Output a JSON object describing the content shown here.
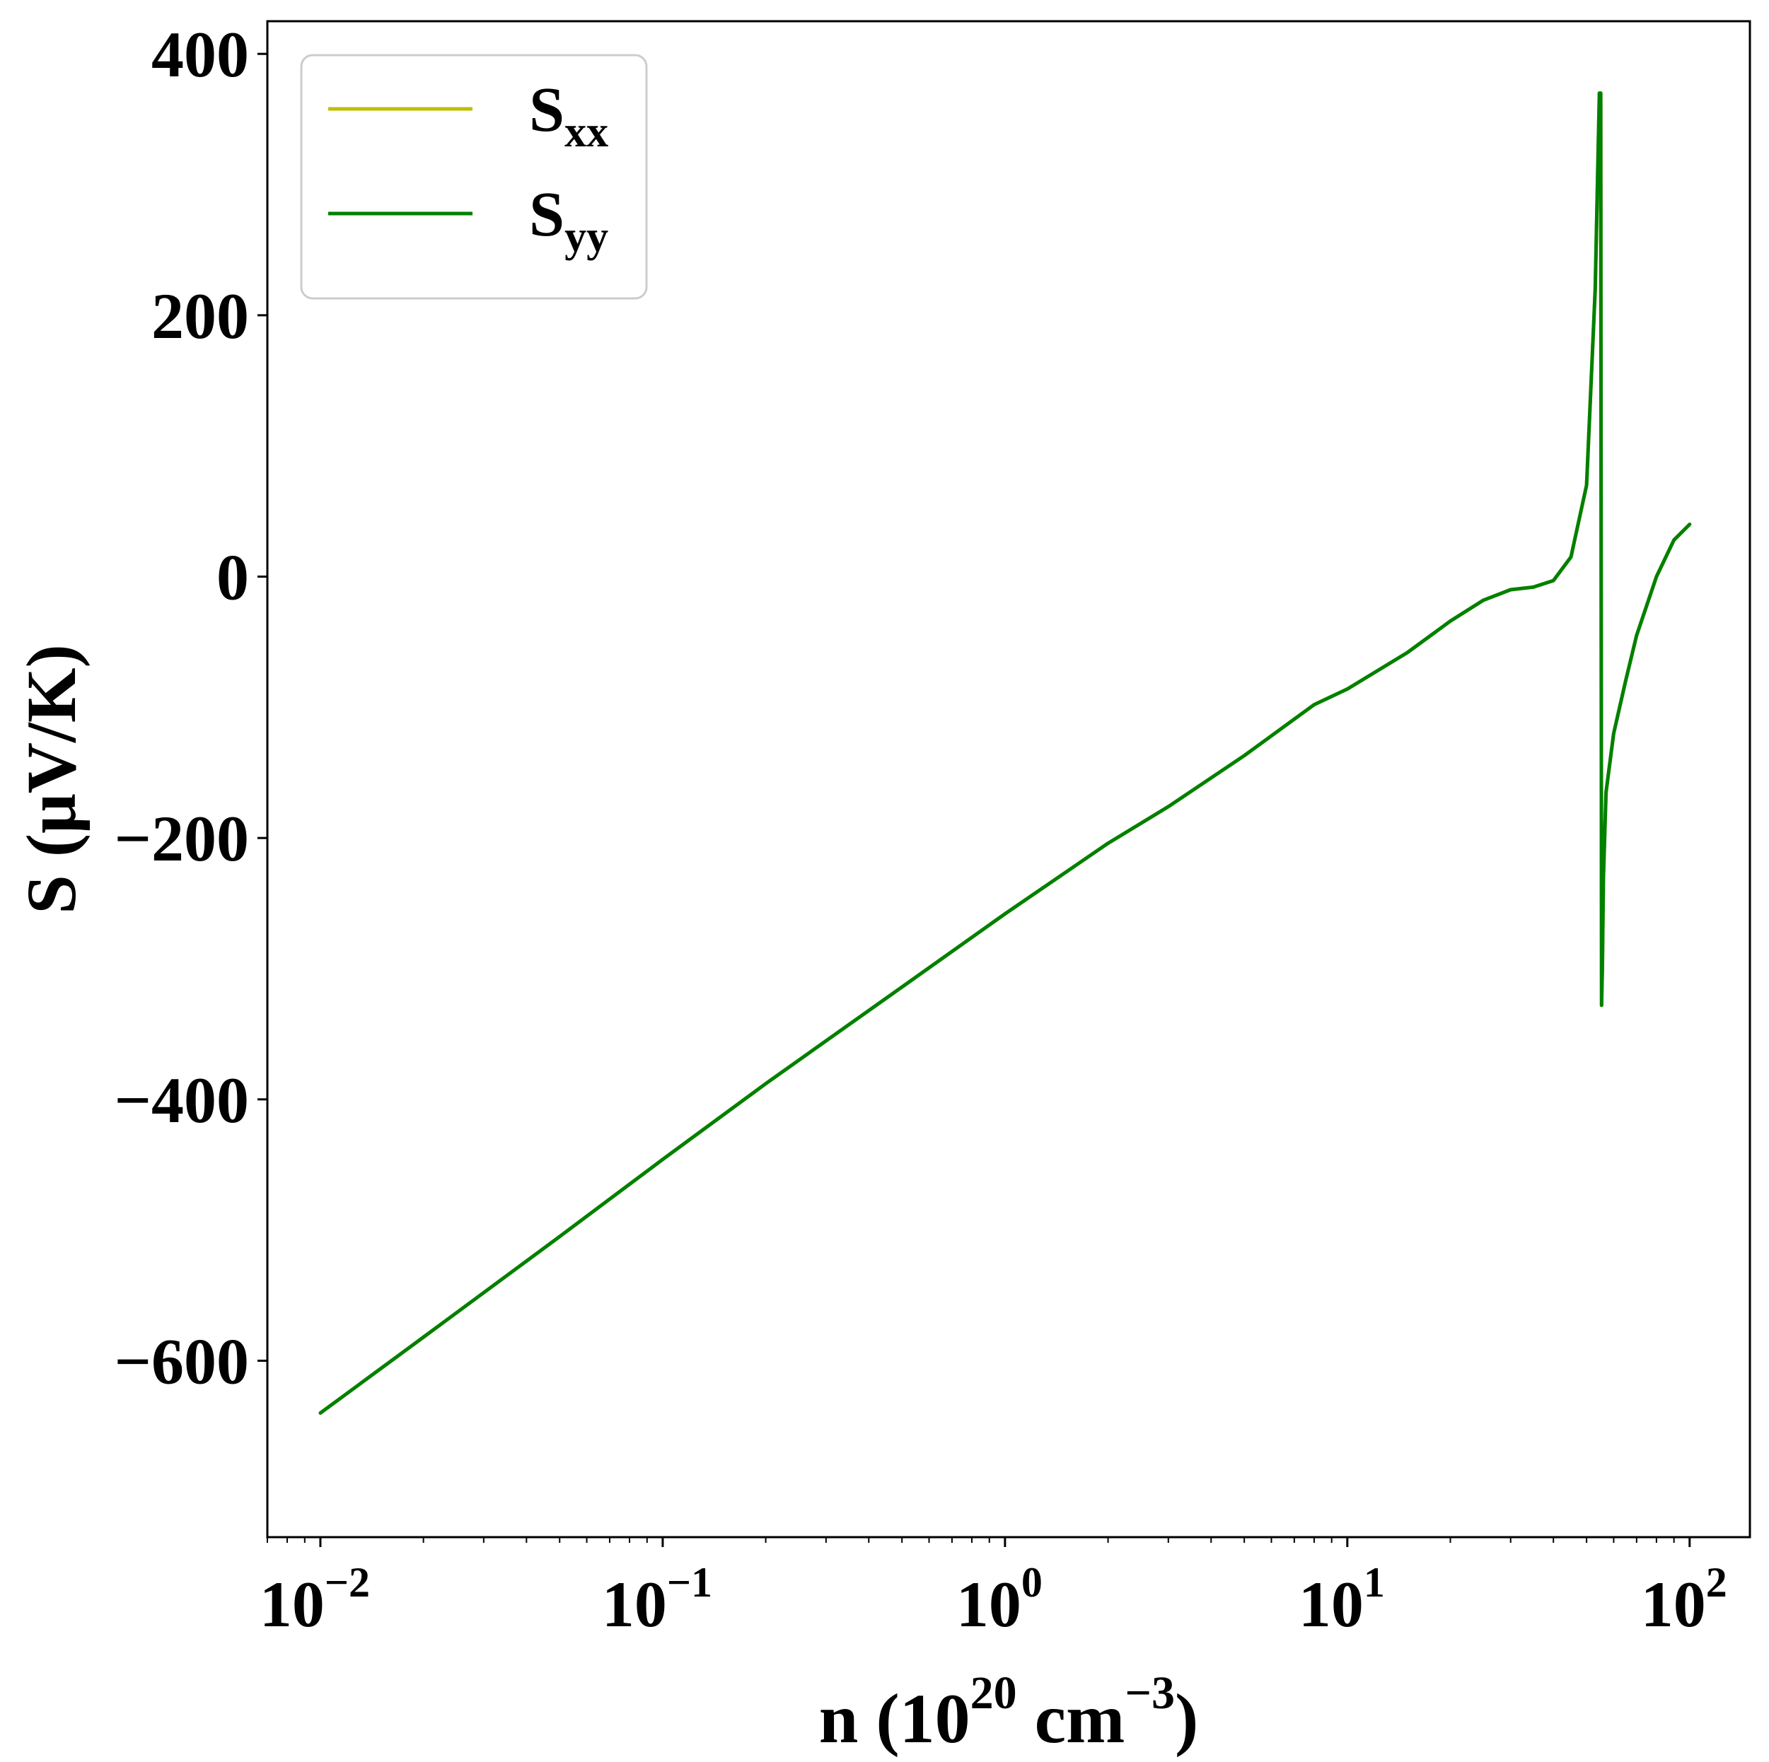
{
  "chart_data": {
    "type": "line",
    "xscale": "log",
    "xlim": [
      0.007,
      150
    ],
    "ylim": [
      -735,
      425
    ],
    "xticks": [
      {
        "value": 0.01,
        "base": "10",
        "exp": "−2"
      },
      {
        "value": 0.1,
        "base": "10",
        "exp": "−1"
      },
      {
        "value": 1,
        "base": "10",
        "exp": "0"
      },
      {
        "value": 10,
        "base": "10",
        "exp": "1"
      },
      {
        "value": 100,
        "base": "10",
        "exp": "2"
      }
    ],
    "yticks": [
      {
        "value": 400,
        "label": "400"
      },
      {
        "value": 200,
        "label": "200"
      },
      {
        "value": 0,
        "label": "0"
      },
      {
        "value": -200,
        "label": "−200"
      },
      {
        "value": -400,
        "label": "−400"
      },
      {
        "value": -600,
        "label": "−600"
      }
    ],
    "xlabel": {
      "prefix": "n (10",
      "sup1": "20",
      "middle": " cm",
      "sup2": "−3",
      "suffix": ")"
    },
    "ylabel": "S (μV/K)",
    "legend_position": "upper-left",
    "series": [
      {
        "name": "S",
        "subscript": "xx",
        "color": "#bfbf00",
        "x": [
          0.01,
          0.02,
          0.05,
          0.1,
          0.2,
          0.5,
          1,
          2,
          3,
          5,
          8,
          10,
          15,
          20,
          25,
          30,
          35,
          40,
          45,
          50,
          53,
          54.5,
          55,
          55.3,
          55.6,
          56,
          57,
          60,
          65,
          70,
          80,
          90,
          100
        ],
        "y": [
          -640,
          -582,
          -505,
          -446,
          -388,
          -314,
          -258,
          -204,
          -176,
          -137,
          -98,
          -86,
          -58,
          -34,
          -18,
          -10,
          -8,
          -3,
          15,
          70,
          220,
          370,
          370,
          -328,
          -300,
          -230,
          -165,
          -120,
          -80,
          -45,
          0,
          28,
          40
        ]
      },
      {
        "name": "S",
        "subscript": "yy",
        "color": "#008000",
        "x": [
          0.01,
          0.02,
          0.05,
          0.1,
          0.2,
          0.5,
          1,
          2,
          3,
          5,
          8,
          10,
          15,
          20,
          25,
          30,
          35,
          40,
          45,
          50,
          53,
          54.5,
          55,
          55.3,
          55.6,
          56,
          57,
          60,
          65,
          70,
          80,
          90,
          100
        ],
        "y": [
          -640,
          -582,
          -505,
          -446,
          -388,
          -314,
          -258,
          -204,
          -176,
          -137,
          -98,
          -86,
          -58,
          -34,
          -18,
          -10,
          -8,
          -3,
          15,
          70,
          220,
          370,
          370,
          -328,
          -300,
          -230,
          -165,
          -120,
          -80,
          -45,
          0,
          28,
          40
        ]
      }
    ]
  }
}
